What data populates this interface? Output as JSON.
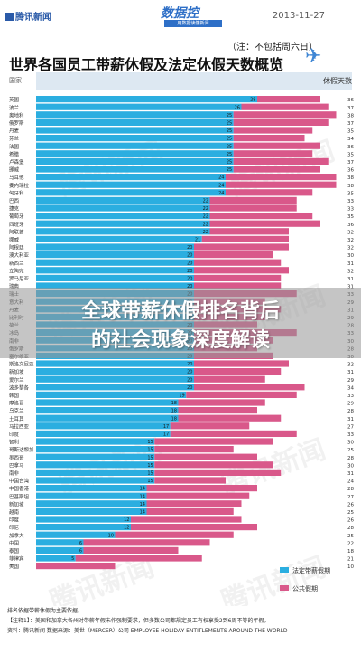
{
  "header": {
    "logo_left": "腾讯新闻",
    "logo_center": "数据控",
    "logo_center_sub": "用数据读懂新闻",
    "date": "2013-11-27",
    "note": "（注：不包括周六日）"
  },
  "watermark": "腾讯新闻",
  "banner": {
    "line1": "全球带薪休假排名背后",
    "line2": "的社会现象深度解读"
  },
  "colors": {
    "paid": "#2baee0",
    "public": "#d9588a"
  },
  "footnotes": {
    "line1": "排名依据带薪休假为主要依据。",
    "line2": "【注释1】：美国和加拿大各州对带薪年假未作强制要求，但多数公司都规定员工有权享受2到6周不等的年假。",
    "line3": "资料：腾讯新闻  数据来源：美世（MERCER）公司 EMPLOYEE HOLIDAY ENTITLEMENTS AROUND THE WORLD"
  },
  "chart_data": {
    "type": "bar",
    "stacked": true,
    "orientation": "horizontal",
    "title": "世界各国员工带薪休假及法定休假天数概览",
    "column_header_left": "国家",
    "column_header_right": "休假天数",
    "xlim": [
      0,
      40
    ],
    "legend": [
      "法定带薪假期",
      "公共假期"
    ],
    "legend_position": "bottom-right",
    "categories": [
      "英国",
      "波兰",
      "奥地利",
      "俄罗斯",
      "丹麦",
      "芬兰",
      "法国",
      "希腊",
      "卢森堡",
      "挪威",
      "马耳他",
      "委内瑞拉",
      "匈牙利",
      "巴西",
      "捷克",
      "葡萄牙",
      "西班牙",
      "阿联酋",
      "挪威",
      "阿根廷",
      "澳大利亚",
      "新西兰",
      "立陶宛",
      "罗马尼亚",
      "瑞典",
      "瑞士",
      "意大利",
      "丹麦",
      "比利时",
      "荷兰",
      "冰岛",
      "南非",
      "俄罗斯",
      "塞尔维亚",
      "斯洛文尼亚",
      "新加坡",
      "爱尔兰",
      "波多黎各",
      "韩国",
      "摩洛哥",
      "乌克兰",
      "土耳其",
      "马拉西亚",
      "印度",
      "智利",
      "哥斯达黎加",
      "墨西哥",
      "巴拿马",
      "南非",
      "中国台湾",
      "中国香港",
      "巴基斯坦",
      "新加坡",
      "越南",
      "印度",
      "印尼",
      "加拿大",
      "中国",
      "泰国",
      "菲律宾",
      "美国"
    ],
    "series": [
      {
        "name": "法定带薪假期",
        "values": [
          28,
          26,
          25,
          25,
          25,
          25,
          25,
          25,
          25,
          25,
          24,
          24,
          24,
          22,
          22,
          22,
          22,
          22,
          21,
          20,
          20,
          20,
          20,
          20,
          20,
          20,
          20,
          20,
          20,
          20,
          20,
          20,
          20,
          20,
          20,
          20,
          20,
          20,
          19,
          18,
          18,
          18,
          17,
          17,
          15,
          15,
          15,
          15,
          15,
          15,
          14,
          14,
          14,
          14,
          12,
          12,
          10,
          6,
          6,
          5,
          0
        ]
      },
      {
        "name": "公共假期",
        "values": [
          8,
          11,
          13,
          12,
          10,
          9,
          11,
          10,
          12,
          11,
          14,
          14,
          11,
          11,
          11,
          13,
          14,
          10,
          11,
          12,
          10,
          11,
          12,
          11,
          11,
          13,
          9,
          11,
          9,
          8,
          13,
          10,
          8,
          10,
          12,
          11,
          9,
          14,
          14,
          11,
          10,
          13,
          10,
          16,
          15,
          10,
          13,
          15,
          16,
          9,
          14,
          13,
          12,
          11,
          14,
          16,
          15,
          16,
          12,
          16,
          10
        ]
      },
      {
        "name": "total",
        "values": [
          36,
          37,
          38,
          37,
          35,
          34,
          36,
          35,
          37,
          36,
          38,
          38,
          35,
          33,
          33,
          35,
          36,
          32,
          32,
          32,
          30,
          31,
          32,
          31,
          31,
          33,
          29,
          31,
          29,
          28,
          33,
          30,
          28,
          30,
          32,
          31,
          29,
          34,
          33,
          29,
          28,
          31,
          27,
          33,
          30,
          25,
          28,
          30,
          31,
          24,
          28,
          27,
          26,
          25,
          26,
          28,
          25,
          22,
          18,
          21,
          10
        ]
      }
    ]
  }
}
